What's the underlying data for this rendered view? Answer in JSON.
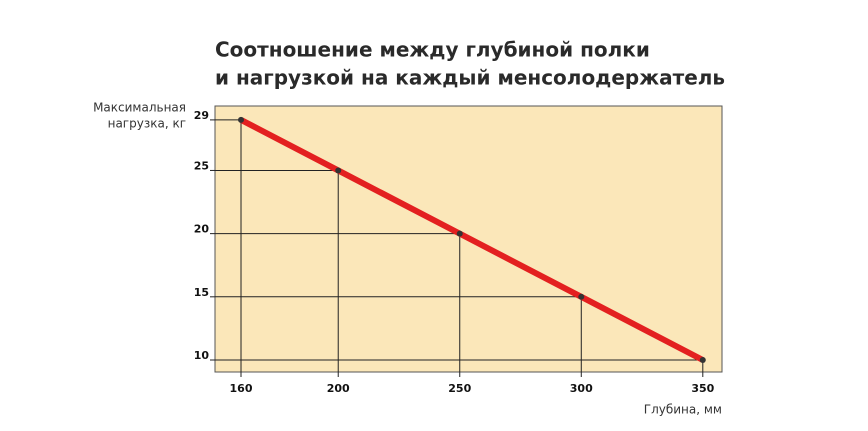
{
  "chart_data": {
    "type": "line",
    "title": [
      "Соотношение между глубиной полки",
      "и нагрузкой на каждый менсолодержатель"
    ],
    "y_label": [
      "Максимальная",
      "нагрузка, кг"
    ],
    "x_label": "Глубина, мм",
    "x": [
      160,
      200,
      250,
      300,
      350
    ],
    "series": [
      {
        "color": "#e32020",
        "values": [
          29,
          25,
          20,
          15,
          10
        ]
      }
    ],
    "xlim": [
      149.3,
      357.9
    ],
    "ylim": [
      9.05,
      30.1
    ],
    "xticks": [
      160,
      200,
      250,
      300,
      350
    ],
    "yticks": [
      10,
      15,
      20,
      25,
      29
    ],
    "background": "#fbe7b9"
  }
}
